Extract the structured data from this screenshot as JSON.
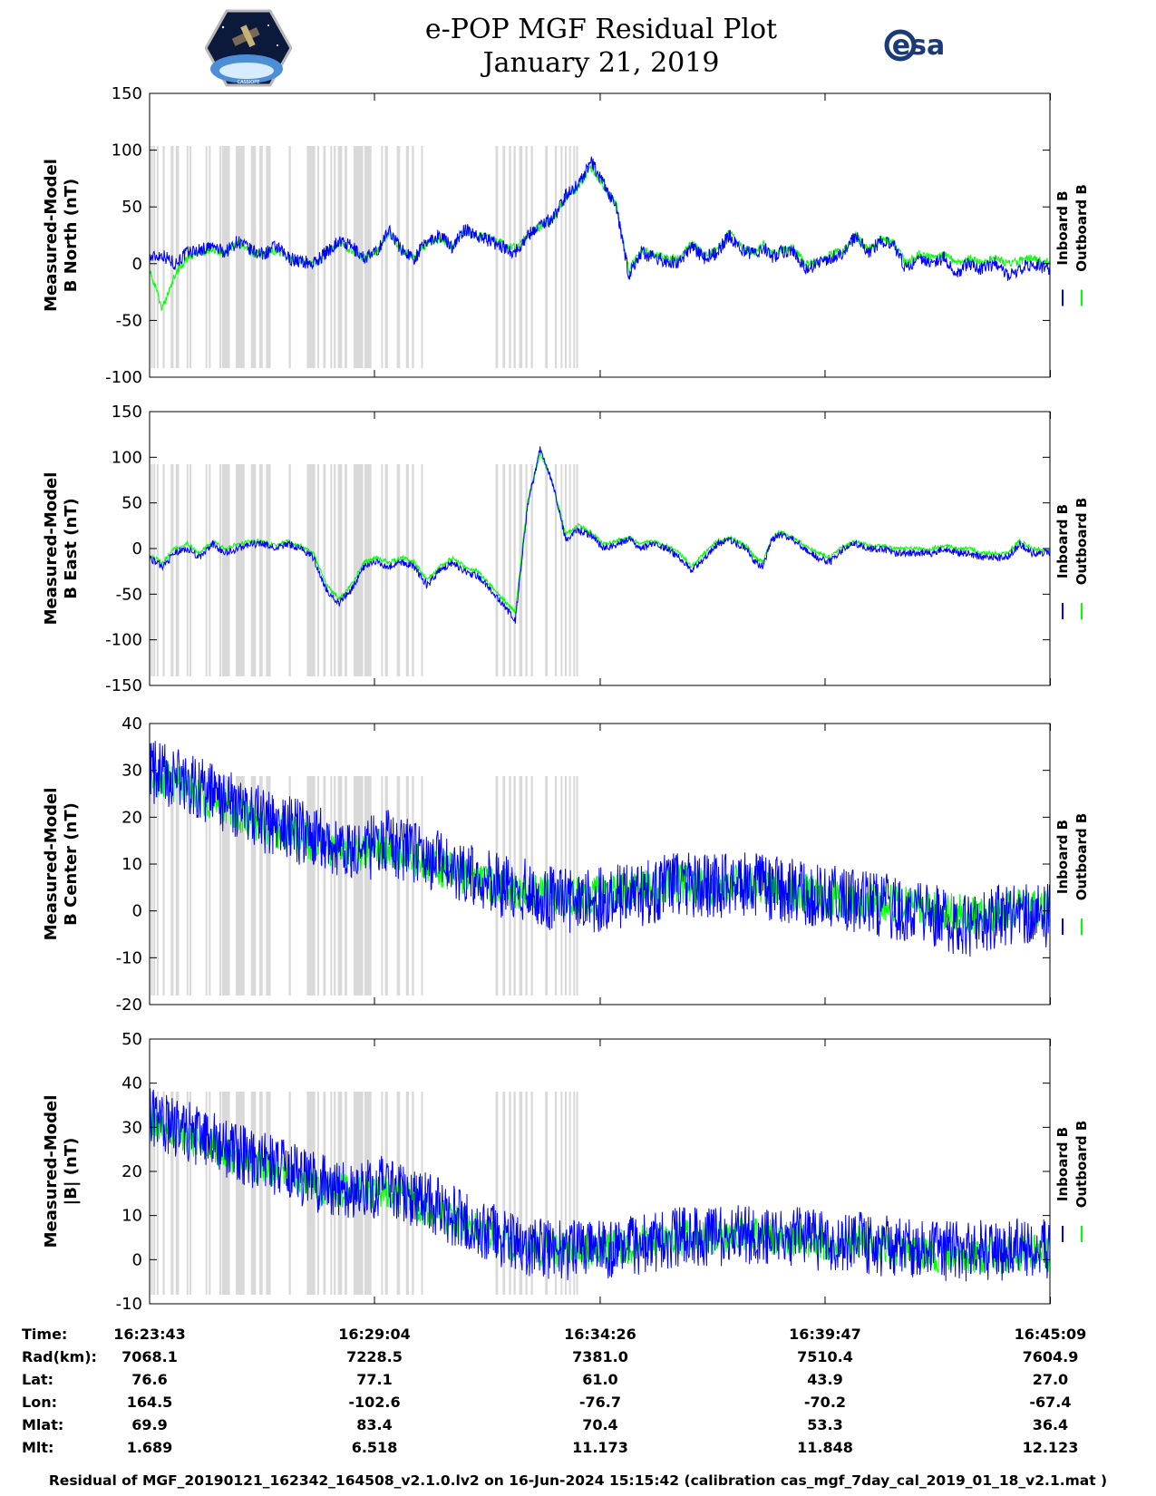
{
  "title": "e-POP MGF Residual Plot",
  "subtitle": "January 21, 2019",
  "logos": {
    "left": "cassiope-mission-patch",
    "left_text": "CASSIOPE",
    "right": "esa-logo",
    "right_text": "esa"
  },
  "colors": {
    "inboard": "#0000ff",
    "outboard": "#00ff00",
    "gap": "#d9d9d9",
    "axis": "#000000"
  },
  "legend": {
    "inboard": "Inboard B",
    "outboard": "Outboard B"
  },
  "gaps": [
    [
      0.03,
      0.05
    ],
    [
      0.09,
      0.12
    ],
    [
      0.17,
      0.2
    ],
    [
      0.31,
      0.36
    ],
    [
      0.5,
      0.57
    ],
    [
      0.62,
      0.7
    ],
    [
      0.88,
      0.91
    ],
    [
      0.95,
      0.98
    ],
    [
      1.33,
      1.35
    ],
    [
      1.41,
      1.45
    ],
    [
      1.66,
      1.69
    ],
    [
      1.72,
      1.91
    ],
    [
      2.05,
      2.26
    ],
    [
      2.41,
      2.53
    ],
    [
      2.61,
      2.69
    ],
    [
      2.77,
      2.88
    ],
    [
      3.31,
      3.36
    ],
    [
      3.74,
      3.94
    ],
    [
      3.99,
      4.03
    ],
    [
      4.13,
      4.19
    ],
    [
      4.3,
      4.33
    ],
    [
      4.38,
      4.43
    ],
    [
      4.48,
      4.58
    ],
    [
      4.64,
      4.7
    ],
    [
      4.85,
      5.08
    ],
    [
      5.11,
      5.28
    ],
    [
      5.51,
      5.54
    ],
    [
      5.6,
      5.67
    ],
    [
      5.88,
      5.96
    ],
    [
      6.1,
      6.17
    ],
    [
      6.24,
      6.29
    ],
    [
      6.46,
      6.5
    ],
    [
      8.23,
      8.29
    ],
    [
      8.4,
      8.46
    ],
    [
      8.55,
      8.6
    ],
    [
      8.66,
      8.71
    ],
    [
      8.79,
      8.87
    ],
    [
      8.94,
      8.99
    ],
    [
      9.07,
      9.12
    ],
    [
      9.41,
      9.47
    ],
    [
      9.64,
      9.69
    ],
    [
      9.78,
      9.82
    ],
    [
      9.88,
      9.92
    ],
    [
      9.98,
      10.01
    ],
    [
      10.08,
      10.11
    ],
    [
      10.15,
      10.18
    ]
  ],
  "chart_data": [
    {
      "type": "line",
      "ylabel": [
        "Measured-Model",
        "B North (nT)"
      ],
      "ylim": [
        -100,
        150
      ],
      "yticks": [
        -100,
        -50,
        0,
        50,
        100,
        150
      ],
      "x_unit": "minutes since 16:23:43",
      "series": [
        {
          "name": "Inboard B",
          "x": [
            0,
            0.3,
            0.6,
            0.9,
            1.2,
            1.5,
            1.8,
            2.1,
            2.4,
            2.7,
            3.0,
            3.3,
            3.6,
            3.9,
            4.2,
            4.5,
            4.8,
            5.1,
            5.4,
            5.7,
            6.0,
            6.3,
            6.6,
            6.9,
            7.2,
            7.5,
            7.8,
            8.1,
            8.4,
            8.7,
            9.0,
            9.3,
            9.6,
            9.9,
            10.2,
            10.5,
            10.8,
            11.1,
            11.4,
            11.7,
            12.0,
            12.3,
            12.6,
            12.9,
            13.2,
            13.5,
            13.8,
            14.0,
            14.2,
            14.4,
            14.6,
            14.8,
            15.0,
            15.3,
            15.6,
            15.9,
            16.2,
            16.5,
            16.8,
            17.1,
            17.4,
            17.7,
            18.0,
            18.3,
            18.6,
            18.9,
            19.2,
            19.5,
            19.8,
            20.1,
            20.4,
            20.7,
            21.0,
            21.42
          ],
          "y": [
            5,
            8,
            0,
            10,
            12,
            15,
            10,
            20,
            12,
            8,
            15,
            5,
            2,
            0,
            10,
            20,
            15,
            5,
            10,
            30,
            12,
            5,
            20,
            25,
            15,
            30,
            25,
            20,
            15,
            10,
            25,
            35,
            40,
            60,
            70,
            90,
            70,
            50,
            -10,
            10,
            5,
            2,
            0,
            15,
            5,
            10,
            25,
            15,
            10,
            8,
            15,
            5,
            10,
            12,
            -5,
            0,
            5,
            10,
            25,
            10,
            20,
            15,
            -5,
            5,
            2,
            5,
            -8,
            0,
            -5,
            0,
            -10,
            -5,
            0,
            -5
          ]
        },
        {
          "name": "Outboard B",
          "x": [
            0,
            0.3,
            0.6,
            0.9,
            1.2,
            1.5,
            1.8,
            2.1,
            2.4,
            2.7,
            3.0,
            3.3,
            3.6,
            3.9,
            4.2,
            4.5,
            4.8,
            5.1,
            5.4,
            5.7,
            6.0,
            6.3,
            6.6,
            6.9,
            7.2,
            7.5,
            7.8,
            8.1,
            8.4,
            8.7,
            9.0,
            9.3,
            9.6,
            9.9,
            10.2,
            10.5,
            10.8,
            11.1,
            11.4,
            11.7,
            12.0,
            12.3,
            12.6,
            12.9,
            13.2,
            13.5,
            13.8,
            14.0,
            14.2,
            14.4,
            14.6,
            14.8,
            15.0,
            15.3,
            15.6,
            15.9,
            16.2,
            16.5,
            16.8,
            17.1,
            17.4,
            17.7,
            18.0,
            18.3,
            18.6,
            18.9,
            19.2,
            19.5,
            19.8,
            20.1,
            20.4,
            20.7,
            21.0,
            21.42
          ],
          "y": [
            -5,
            -40,
            -10,
            5,
            10,
            12,
            10,
            18,
            10,
            8,
            12,
            5,
            2,
            0,
            10,
            18,
            12,
            5,
            10,
            28,
            12,
            5,
            18,
            22,
            15,
            28,
            25,
            22,
            18,
            14,
            25,
            33,
            40,
            58,
            68,
            85,
            68,
            52,
            -5,
            12,
            8,
            5,
            5,
            18,
            8,
            12,
            28,
            18,
            12,
            10,
            18,
            8,
            12,
            15,
            0,
            2,
            8,
            12,
            25,
            12,
            22,
            18,
            0,
            8,
            5,
            8,
            0,
            5,
            0,
            5,
            0,
            2,
            5,
            0
          ]
        }
      ]
    },
    {
      "type": "line",
      "ylabel": [
        "Measured-Model",
        "B East (nT)"
      ],
      "ylim": [
        -150,
        150
      ],
      "yticks": [
        -150,
        -100,
        -50,
        0,
        50,
        100,
        150
      ],
      "x_unit": "minutes since 16:23:43",
      "series": [
        {
          "name": "Inboard B",
          "x": [
            0,
            0.3,
            0.6,
            0.9,
            1.2,
            1.5,
            1.8,
            2.1,
            2.4,
            2.7,
            3.0,
            3.3,
            3.6,
            3.9,
            4.2,
            4.5,
            4.8,
            5.1,
            5.4,
            5.7,
            6.0,
            6.3,
            6.6,
            6.9,
            7.2,
            7.5,
            7.8,
            8.1,
            8.4,
            8.7,
            9.0,
            9.3,
            9.6,
            9.9,
            10.2,
            10.5,
            10.8,
            11.1,
            11.4,
            11.7,
            12.0,
            12.3,
            12.6,
            12.9,
            13.2,
            13.5,
            13.8,
            14.0,
            14.2,
            14.4,
            14.6,
            14.8,
            15.0,
            15.3,
            15.6,
            15.9,
            16.2,
            16.5,
            16.8,
            17.1,
            17.4,
            17.7,
            18.0,
            18.3,
            18.6,
            18.9,
            19.2,
            19.5,
            19.8,
            20.1,
            20.4,
            20.7,
            21.0,
            21.42
          ],
          "y": [
            -10,
            -20,
            -5,
            0,
            -10,
            5,
            -5,
            0,
            5,
            5,
            0,
            5,
            0,
            -10,
            -45,
            -60,
            -45,
            -20,
            -15,
            -20,
            -15,
            -20,
            -40,
            -25,
            -15,
            -25,
            -30,
            -45,
            -60,
            -80,
            50,
            110,
            70,
            10,
            20,
            15,
            0,
            5,
            10,
            0,
            5,
            0,
            -10,
            -25,
            -10,
            5,
            10,
            5,
            0,
            -15,
            -20,
            10,
            15,
            10,
            0,
            -10,
            -15,
            0,
            5,
            0,
            0,
            -5,
            -5,
            -5,
            -5,
            0,
            -5,
            -5,
            -10,
            -10,
            -10,
            5,
            -5,
            -5
          ]
        },
        {
          "name": "Outboard B",
          "x": [
            0,
            0.3,
            0.6,
            0.9,
            1.2,
            1.5,
            1.8,
            2.1,
            2.4,
            2.7,
            3.0,
            3.3,
            3.6,
            3.9,
            4.2,
            4.5,
            4.8,
            5.1,
            5.4,
            5.7,
            6.0,
            6.3,
            6.6,
            6.9,
            7.2,
            7.5,
            7.8,
            8.1,
            8.4,
            8.7,
            9.0,
            9.3,
            9.6,
            9.9,
            10.2,
            10.5,
            10.8,
            11.1,
            11.4,
            11.7,
            12.0,
            12.3,
            12.6,
            12.9,
            13.2,
            13.5,
            13.8,
            14.0,
            14.2,
            14.4,
            14.6,
            14.8,
            15.0,
            15.3,
            15.6,
            15.9,
            16.2,
            16.5,
            16.8,
            17.1,
            17.4,
            17.7,
            18.0,
            18.3,
            18.6,
            18.9,
            19.2,
            19.5,
            19.8,
            20.1,
            20.4,
            20.7,
            21.0,
            21.42
          ],
          "y": [
            -8,
            -15,
            0,
            5,
            -5,
            8,
            0,
            5,
            8,
            8,
            3,
            8,
            3,
            -5,
            -40,
            -55,
            -40,
            -15,
            -10,
            -15,
            -10,
            -15,
            -35,
            -20,
            -10,
            -20,
            -25,
            -40,
            -55,
            -70,
            55,
            105,
            70,
            15,
            25,
            18,
            5,
            8,
            12,
            5,
            8,
            3,
            -5,
            -20,
            -5,
            8,
            12,
            8,
            3,
            -10,
            -15,
            12,
            18,
            12,
            3,
            -5,
            -10,
            3,
            8,
            3,
            3,
            0,
            0,
            0,
            0,
            3,
            0,
            0,
            -5,
            -5,
            -5,
            8,
            0,
            -3
          ]
        }
      ]
    },
    {
      "type": "line",
      "ylabel": [
        "Measured-Model",
        "B Center (nT)"
      ],
      "ylim": [
        -20,
        40
      ],
      "yticks": [
        -20,
        -10,
        0,
        10,
        20,
        30,
        40
      ],
      "x_unit": "minutes since 16:23:43",
      "series": [
        {
          "name": "Inboard B",
          "x": [
            0,
            0.7,
            1.4,
            2.1,
            2.8,
            3.5,
            4.2,
            4.9,
            5.6,
            6.3,
            7.0,
            7.7,
            8.4,
            9.1,
            9.8,
            10.5,
            11.2,
            11.9,
            12.6,
            13.3,
            14.0,
            14.7,
            15.4,
            16.1,
            16.8,
            17.5,
            18.2,
            18.9,
            19.6,
            20.3,
            21.0,
            21.42
          ],
          "y": [
            30,
            28,
            25,
            22,
            19,
            17,
            15,
            12,
            15,
            12,
            10,
            8,
            5,
            4,
            2,
            2,
            3,
            4,
            6,
            5,
            6,
            5,
            4,
            3,
            2,
            1,
            0,
            -2,
            -3,
            -1,
            0,
            -1
          ]
        },
        {
          "name": "Outboard B",
          "x": [
            0,
            0.7,
            1.4,
            2.1,
            2.8,
            3.5,
            4.2,
            4.9,
            5.6,
            6.3,
            7.0,
            7.7,
            8.4,
            9.1,
            9.8,
            10.5,
            11.2,
            11.9,
            12.6,
            13.3,
            14.0,
            14.7,
            15.4,
            16.1,
            16.8,
            17.5,
            18.2,
            18.9,
            19.6,
            20.3,
            21.0,
            21.42
          ],
          "y": [
            29,
            27,
            24,
            21,
            18,
            16,
            14,
            12,
            14,
            11,
            9,
            7,
            5,
            4,
            3,
            3,
            4,
            5,
            6,
            5,
            6,
            5,
            4,
            3,
            2,
            2,
            1,
            0,
            -1,
            0,
            1,
            0
          ]
        }
      ]
    },
    {
      "type": "line",
      "ylabel": [
        "Measured-Model",
        "|B| (nT)"
      ],
      "ylim": [
        -10,
        50
      ],
      "yticks": [
        -10,
        0,
        10,
        20,
        30,
        40,
        50
      ],
      "x_unit": "minutes since 16:23:43",
      "series": [
        {
          "name": "Inboard B",
          "x": [
            0,
            0.7,
            1.4,
            2.1,
            2.8,
            3.5,
            4.2,
            4.9,
            5.6,
            6.3,
            7.0,
            7.7,
            8.4,
            9.1,
            9.8,
            10.5,
            11.2,
            11.9,
            12.6,
            13.3,
            14.0,
            14.7,
            15.4,
            16.1,
            16.8,
            17.5,
            18.2,
            18.9,
            19.6,
            20.3,
            21.0,
            21.42
          ],
          "y": [
            32,
            30,
            27,
            24,
            22,
            19,
            17,
            15,
            17,
            14,
            11,
            8,
            5,
            3,
            2,
            2,
            3,
            4,
            5,
            5,
            6,
            5,
            5,
            4,
            4,
            3,
            3,
            2,
            2,
            2,
            3,
            2
          ]
        },
        {
          "name": "Outboard B",
          "x": [
            0,
            0.7,
            1.4,
            2.1,
            2.8,
            3.5,
            4.2,
            4.9,
            5.6,
            6.3,
            7.0,
            7.7,
            8.4,
            9.1,
            9.8,
            10.5,
            11.2,
            11.9,
            12.6,
            13.3,
            14.0,
            14.7,
            15.4,
            16.1,
            16.8,
            17.5,
            18.2,
            18.9,
            19.6,
            20.3,
            21.0,
            21.42
          ],
          "y": [
            31,
            29,
            26,
            23,
            21,
            18,
            16,
            15,
            16,
            13,
            10,
            7,
            4,
            3,
            2,
            2,
            3,
            4,
            5,
            5,
            6,
            5,
            5,
            4,
            4,
            3,
            2,
            1,
            1,
            1,
            2,
            1
          ]
        }
      ]
    }
  ],
  "info_table": {
    "labels": [
      "Time:",
      "Rad(km):",
      "Lat:",
      "Lon:",
      "Mlat:",
      "Mlt:"
    ],
    "columns": [
      [
        "16:23:43",
        "7068.1",
        "76.6",
        "164.5",
        "69.9",
        "1.689"
      ],
      [
        "16:29:04",
        "7228.5",
        "77.1",
        "-102.6",
        "83.4",
        "6.518"
      ],
      [
        "16:34:26",
        "7381.0",
        "61.0",
        "-76.7",
        "70.4",
        "11.173"
      ],
      [
        "16:39:47",
        "7510.4",
        "43.9",
        "-70.2",
        "53.3",
        "11.848"
      ],
      [
        "16:45:09",
        "7604.9",
        "27.0",
        "-67.4",
        "36.4",
        "12.123"
      ]
    ],
    "tick_minutes": [
      0,
      5.35,
      10.72,
      16.07,
      21.43
    ]
  },
  "footer": "Residual of MGF_20190121_162342_164508_v2.1.0.lv2 on 16-Jun-2024 15:15:42 (calibration cas_mgf_7day_cal_2019_01_18_v2.1.mat )"
}
